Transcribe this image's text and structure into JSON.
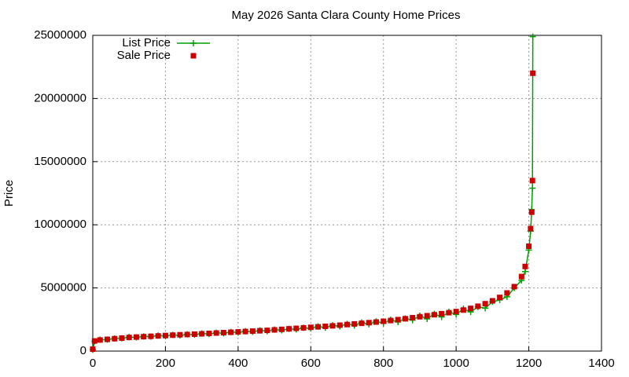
{
  "chart_data": {
    "type": "scatter",
    "title": "May 2026 Santa Clara County Home Prices",
    "y_label": "Price",
    "x": [
      0,
      5,
      20,
      40,
      60,
      80,
      100,
      120,
      140,
      160,
      180,
      200,
      220,
      240,
      260,
      280,
      300,
      320,
      340,
      360,
      380,
      400,
      420,
      440,
      460,
      480,
      500,
      520,
      540,
      560,
      580,
      600,
      620,
      640,
      660,
      680,
      700,
      720,
      740,
      760,
      780,
      800,
      820,
      840,
      860,
      880,
      900,
      920,
      940,
      960,
      980,
      1000,
      1020,
      1040,
      1060,
      1080,
      1100,
      1120,
      1140,
      1160,
      1180,
      1190,
      1200,
      1205,
      1208,
      1210,
      1211
    ],
    "series": [
      {
        "name": "List Price",
        "color": "#00a000",
        "style": "linespoints",
        "values": [
          120000,
          780000,
          900000,
          910000,
          1000000,
          1010000,
          1100000,
          1090000,
          1160000,
          1150000,
          1230000,
          1190000,
          1280000,
          1240000,
          1330000,
          1300000,
          1390000,
          1350000,
          1450000,
          1410000,
          1510000,
          1470000,
          1570000,
          1520000,
          1640000,
          1580000,
          1700000,
          1650000,
          1760000,
          1720000,
          1840000,
          1790000,
          1950000,
          1850000,
          2040000,
          1960000,
          2150000,
          2030000,
          2260000,
          2120000,
          2350000,
          2200000,
          2480000,
          2300000,
          2580000,
          2450000,
          2800000,
          2550000,
          2950000,
          2700000,
          3100000,
          2900000,
          3350000,
          3100000,
          3500000,
          3400000,
          3900000,
          4050000,
          4300000,
          5000000,
          5600000,
          6300000,
          8000000,
          9500000,
          11200000,
          12900000,
          24900000
        ]
      },
      {
        "name": "Sale Price",
        "color": "#cc0000",
        "style": "points",
        "values": [
          150000,
          800000,
          880000,
          930000,
          980000,
          1030000,
          1080000,
          1110000,
          1140000,
          1170000,
          1200000,
          1230000,
          1260000,
          1290000,
          1310000,
          1340000,
          1370000,
          1400000,
          1430000,
          1460000,
          1490000,
          1520000,
          1550000,
          1580000,
          1610000,
          1640000,
          1680000,
          1720000,
          1760000,
          1800000,
          1840000,
          1880000,
          1920000,
          1960000,
          2000000,
          2050000,
          2100000,
          2150000,
          2200000,
          2250000,
          2300000,
          2360000,
          2420000,
          2490000,
          2560000,
          2640000,
          2720000,
          2800000,
          2880000,
          2960000,
          3040000,
          3130000,
          3250000,
          3380000,
          3550000,
          3750000,
          3980000,
          4250000,
          4600000,
          5100000,
          5900000,
          6700000,
          8300000,
          9700000,
          11000000,
          13500000,
          22000000
        ]
      }
    ],
    "xlim": [
      0,
      1400
    ],
    "xticks": [
      0,
      200,
      400,
      600,
      800,
      1000,
      1200,
      1400
    ],
    "ylim": [
      0,
      25000000
    ],
    "yticks": [
      0,
      5000000,
      10000000,
      15000000,
      20000000,
      25000000
    ],
    "grid": true,
    "legend": "top-left"
  }
}
